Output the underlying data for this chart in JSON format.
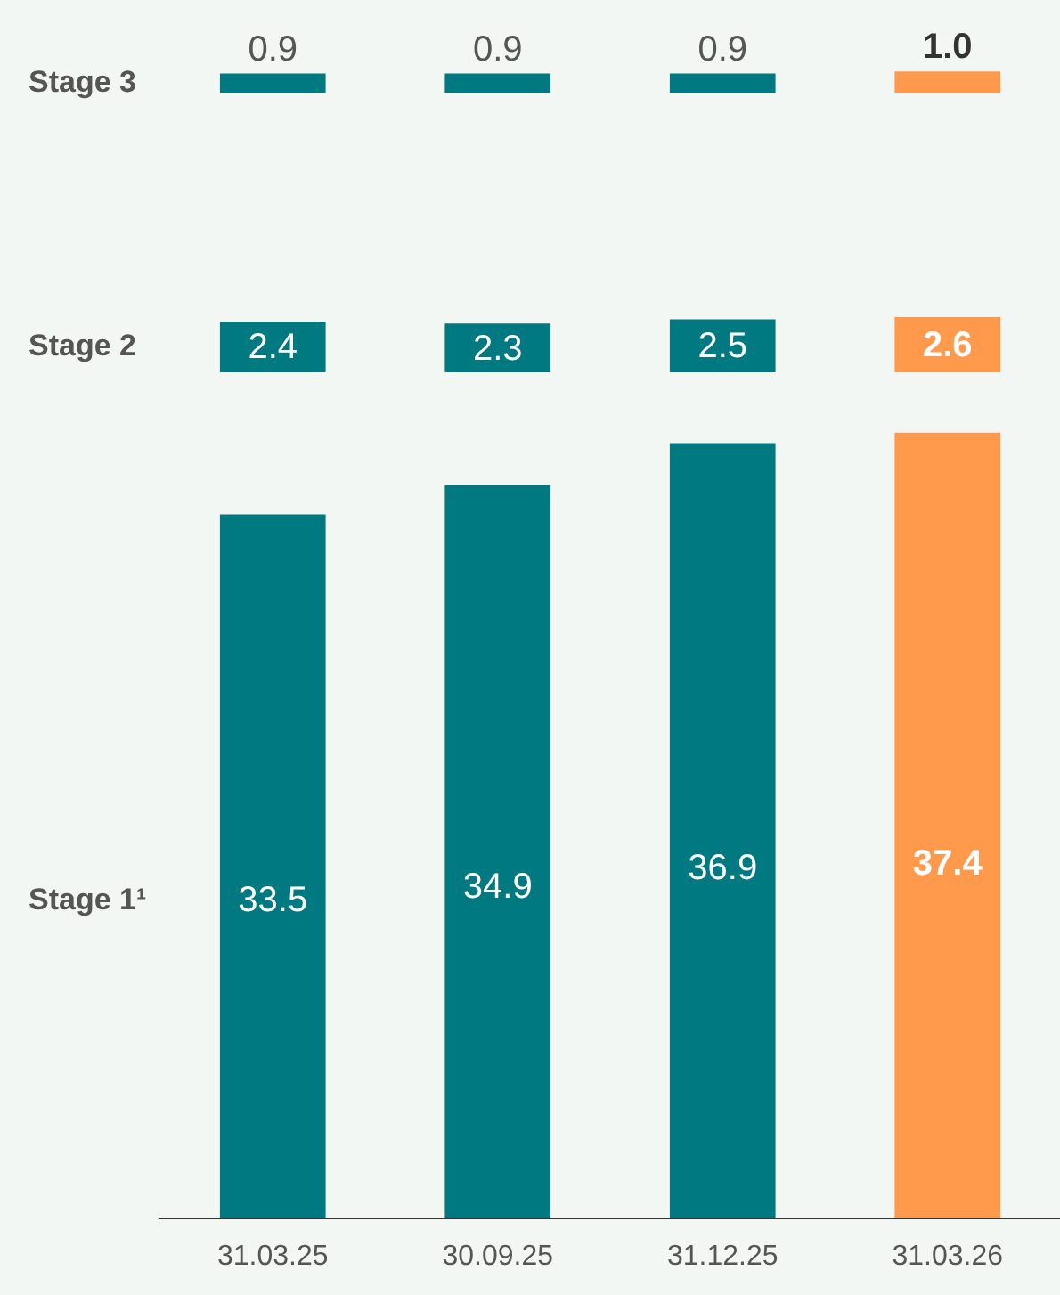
{
  "chart_data": [
    {
      "type": "bar",
      "categories": [
        "31.03.25",
        "30.09.25",
        "31.12.25",
        "31.03.26"
      ],
      "tick_labels": false,
      "legend": false,
      "grid": false,
      "series": [
        {
          "name": "Stage 3",
          "colors": [
            "#007a80",
            "#007a80",
            "#007a80",
            "#ff9a4d"
          ],
          "values": [
            0.9,
            0.9,
            0.9,
            1.0
          ],
          "value_labels": [
            "0.9",
            "0.9",
            "0.9",
            "1.0"
          ]
        }
      ]
    },
    {
      "type": "bar",
      "categories": [
        "31.03.25",
        "30.09.25",
        "31.12.25",
        "31.03.26"
      ],
      "tick_labels": false,
      "legend": false,
      "grid": false,
      "series": [
        {
          "name": "Stage 2",
          "colors": [
            "#007a80",
            "#007a80",
            "#007a80",
            "#ff9a4d"
          ],
          "values": [
            2.4,
            2.3,
            2.5,
            2.6
          ],
          "value_labels": [
            "2.4",
            "2.3",
            "2.5",
            "2.6"
          ]
        }
      ]
    },
    {
      "type": "bar",
      "categories": [
        "31.03.25",
        "30.09.25",
        "31.12.25",
        "31.03.26"
      ],
      "tick_labels": "x",
      "legend": false,
      "grid": false,
      "series": [
        {
          "name": "Stage 1¹",
          "colors": [
            "#007a80",
            "#007a80",
            "#007a80",
            "#ff9a4d"
          ],
          "values": [
            33.5,
            34.9,
            36.9,
            37.4
          ],
          "value_labels": [
            "33.5",
            "34.9",
            "36.9",
            "37.4"
          ]
        }
      ]
    }
  ]
}
